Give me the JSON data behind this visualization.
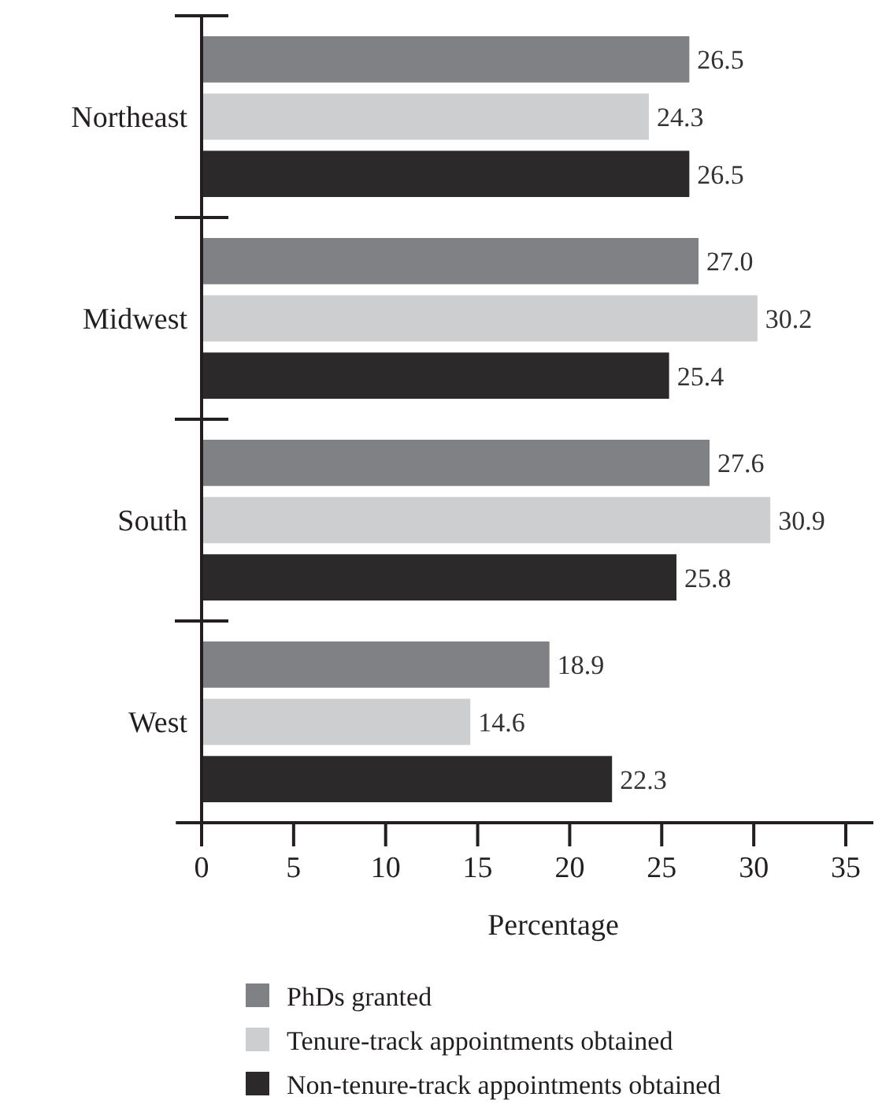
{
  "chart_data": {
    "type": "bar",
    "orientation": "horizontal",
    "categories": [
      "Northeast",
      "Midwest",
      "South",
      "West"
    ],
    "series": [
      {
        "name": "PhDs granted",
        "color": "#808184",
        "values": [
          26.5,
          27.0,
          27.6,
          18.9
        ]
      },
      {
        "name": "Tenure-track appointments obtained",
        "color": "#cdcecf",
        "values": [
          24.3,
          30.2,
          30.9,
          14.6
        ]
      },
      {
        "name": "Non-tenure-track appointments obtained",
        "color": "#2b292a",
        "values": [
          26.5,
          25.4,
          25.8,
          22.3
        ]
      }
    ],
    "value_labels": [
      [
        "26.5",
        "27.0",
        "27.6",
        "18.9"
      ],
      [
        "24.3",
        "30.2",
        "30.9",
        "14.6"
      ],
      [
        "26.5",
        "25.4",
        "25.8",
        "22.3"
      ]
    ],
    "xlabel": "Percentage",
    "xlim": [
      -1.4,
      36.5
    ],
    "xticks": [
      0,
      5,
      10,
      15,
      20,
      25,
      30,
      35
    ],
    "legend": "bottom",
    "grid": false
  }
}
